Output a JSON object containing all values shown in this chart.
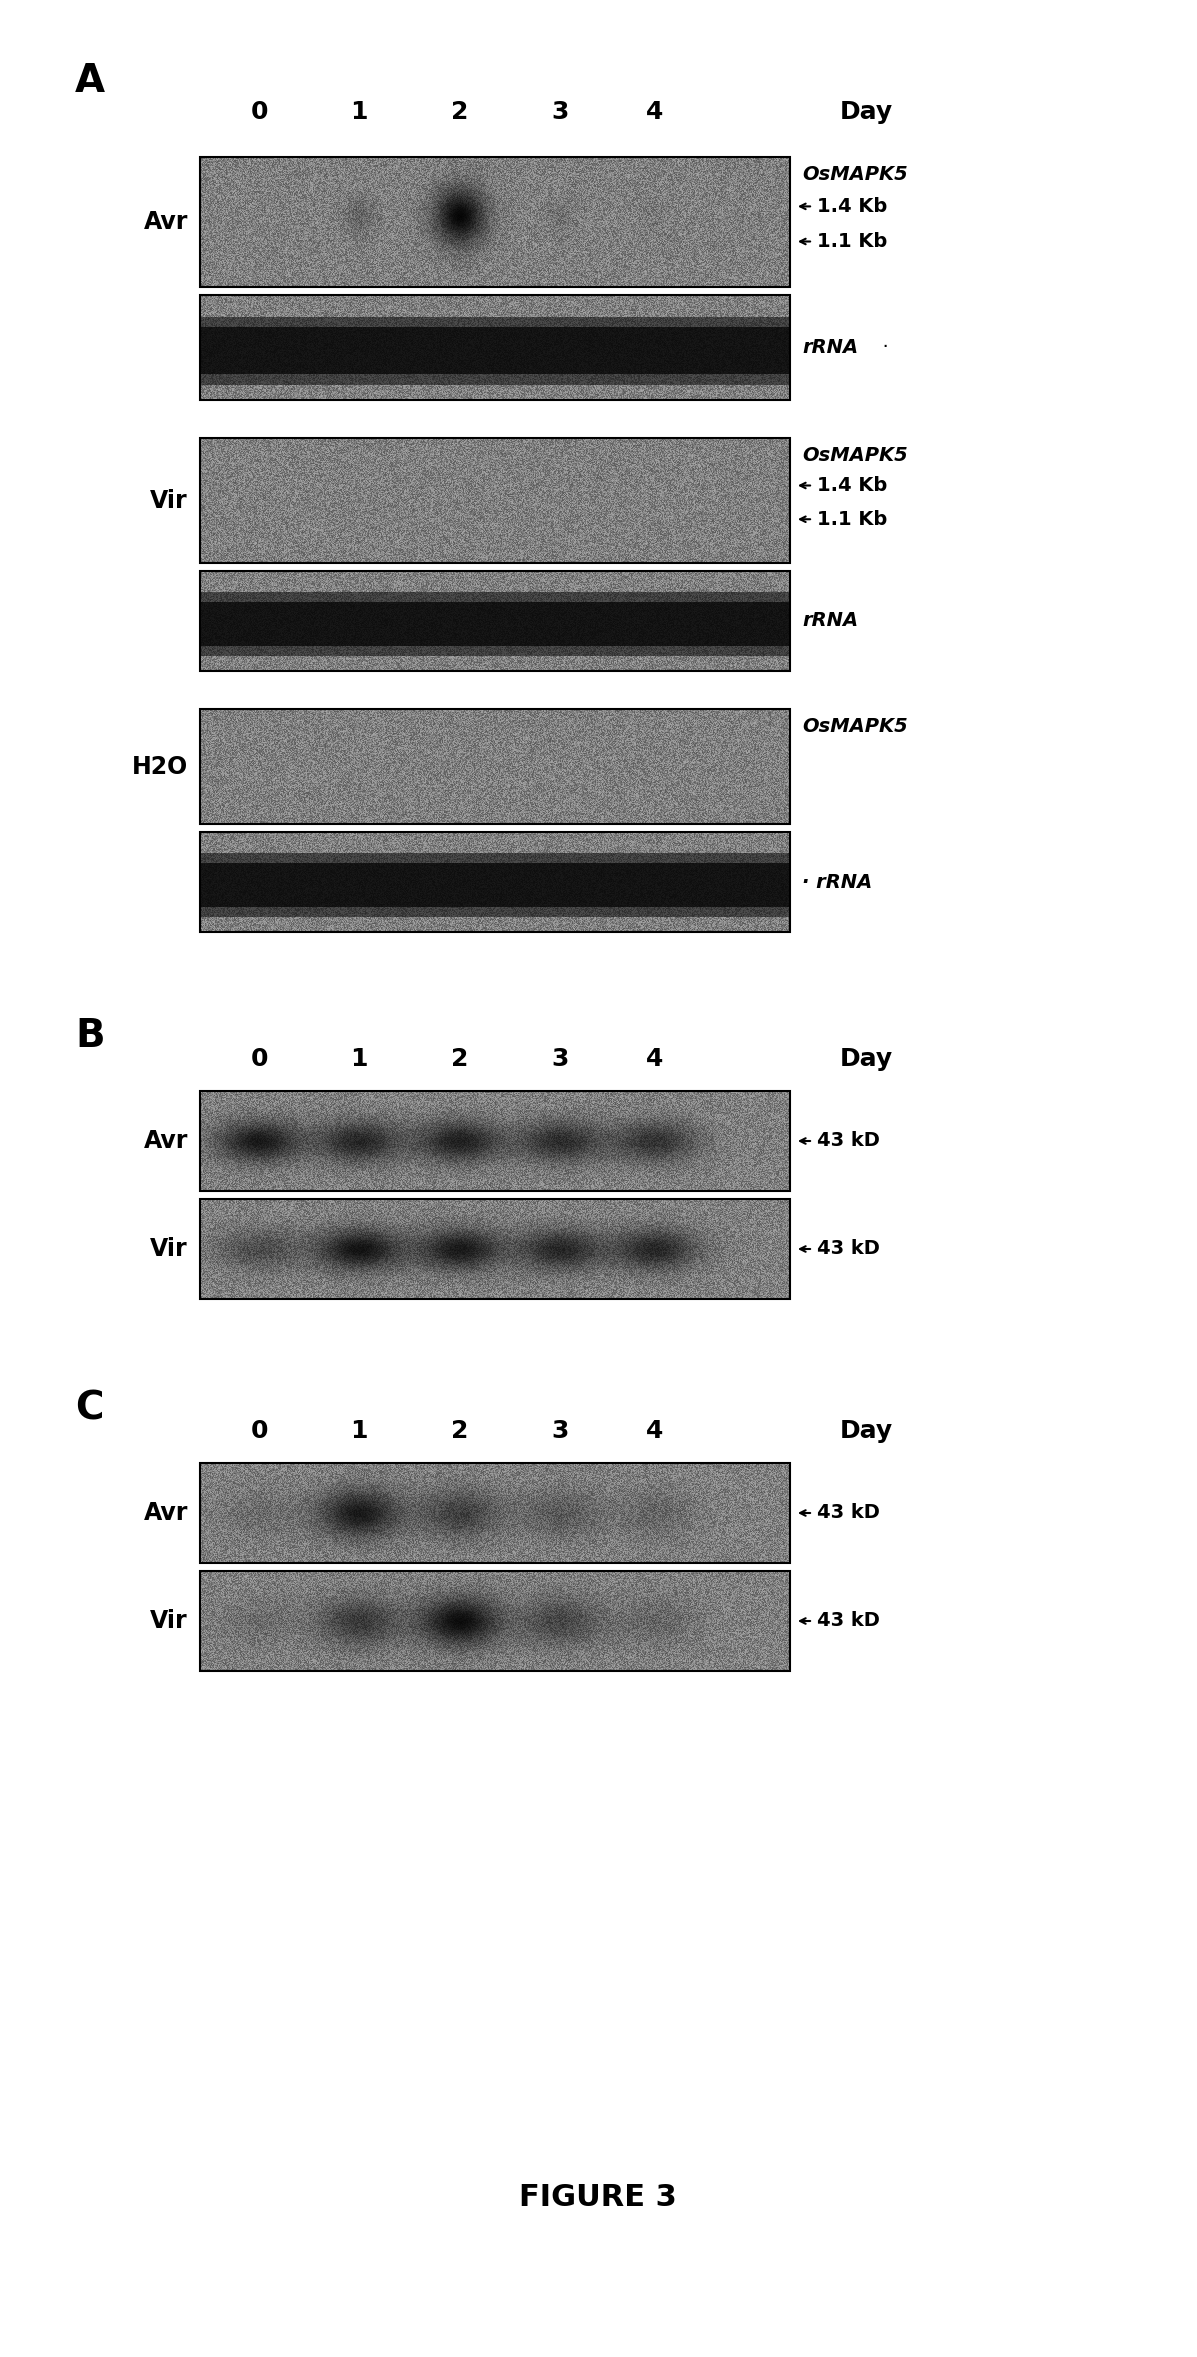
{
  "figure_title": "FIGURE 3",
  "background_color": "#ffffff",
  "panel_A_label": "A",
  "panel_B_label": "B",
  "panel_C_label": "C",
  "day_labels": [
    "0",
    "1",
    "2",
    "3",
    "4",
    "Day"
  ],
  "osmapk5_label": "OsMAPK5",
  "rna_label": "rRNA",
  "kb14_label": "1.4 Kb",
  "kb11_label": "1.1 Kb",
  "kd43_label": "43 kD",
  "avr_label": "Avr",
  "vir_label": "Vir",
  "h2o_label": "H2O"
}
